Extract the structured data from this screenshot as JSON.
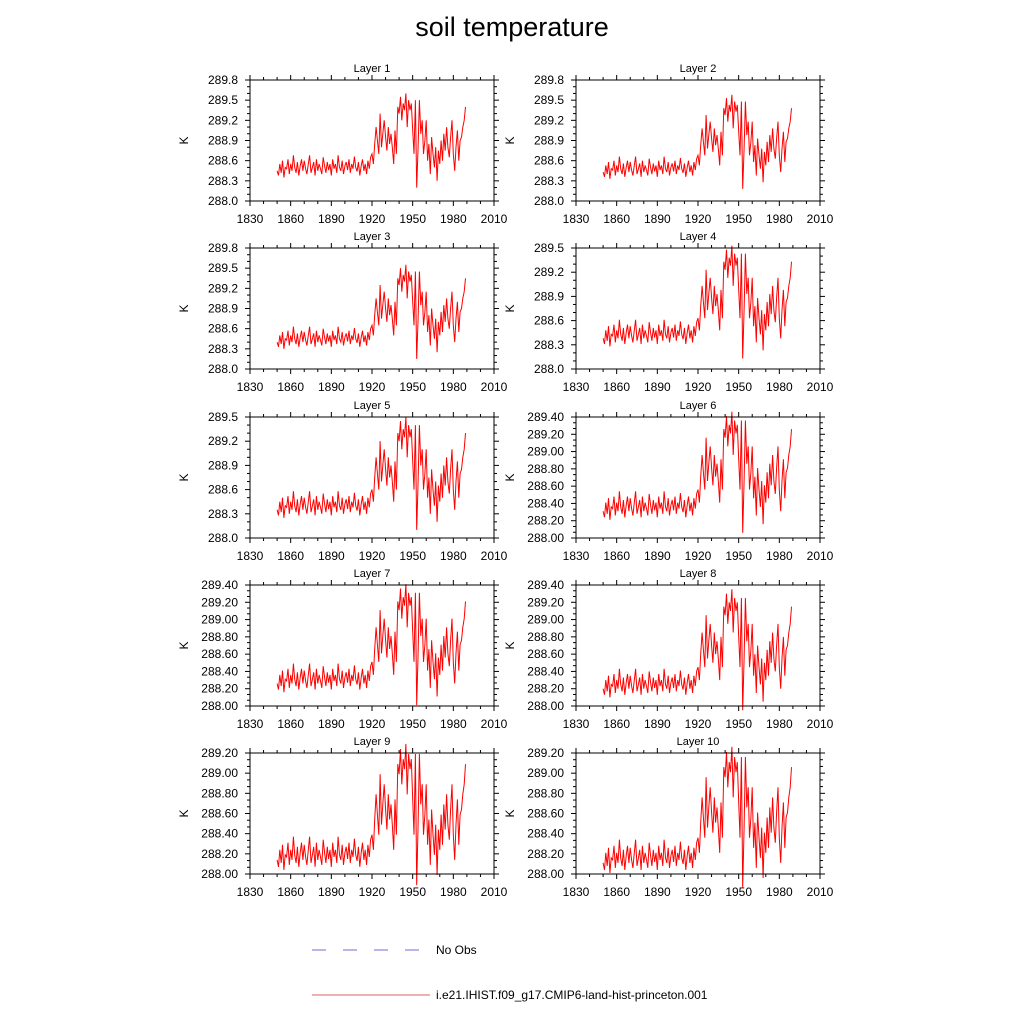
{
  "figure": {
    "title": "soil temperature",
    "legend": [
      {
        "label": "No Obs",
        "color": "#6d6dd8",
        "style": "dashed"
      },
      {
        "label": "i.e21.IHIST.f09_g17.CMIP6-land-hist-princeton.001",
        "color": "#e06060",
        "style": "solid"
      }
    ],
    "series_color": "#ff0000"
  },
  "chart_data": [
    {
      "type": "line",
      "title": "Layer 1",
      "ylabel": "K",
      "xlim": [
        1830,
        2010
      ],
      "ylim": [
        288.0,
        289.8
      ],
      "xticks": [
        "1830",
        "1860",
        "1890",
        "1920",
        "1950",
        "1980",
        "2010"
      ],
      "yticks": [
        "288.0",
        "288.3",
        "288.6",
        "288.9",
        "289.2",
        "289.5",
        "289.8"
      ],
      "offset": 0.0
    },
    {
      "type": "line",
      "title": "Layer 2",
      "ylabel": "K",
      "xlim": [
        1830,
        2010
      ],
      "ylim": [
        288.0,
        289.8
      ],
      "xticks": [
        "1830",
        "1860",
        "1890",
        "1920",
        "1950",
        "1980",
        "2010"
      ],
      "yticks": [
        "288.0",
        "288.3",
        "288.6",
        "288.9",
        "289.2",
        "289.5",
        "289.8"
      ],
      "offset": -0.02
    },
    {
      "type": "line",
      "title": "Layer 3",
      "ylabel": "K",
      "xlim": [
        1830,
        2010
      ],
      "ylim": [
        288.0,
        289.8
      ],
      "xticks": [
        "1830",
        "1860",
        "1890",
        "1920",
        "1950",
        "1980",
        "2010"
      ],
      "yticks": [
        "288.0",
        "288.3",
        "288.6",
        "288.9",
        "289.2",
        "289.5",
        "289.8"
      ],
      "offset": -0.05
    },
    {
      "type": "line",
      "title": "Layer 4",
      "ylabel": "K",
      "xlim": [
        1830,
        2010
      ],
      "ylim": [
        288.0,
        289.5
      ],
      "xticks": [
        "1830",
        "1860",
        "1890",
        "1920",
        "1950",
        "1980",
        "2010"
      ],
      "yticks": [
        "288.0",
        "288.3",
        "288.6",
        "288.9",
        "289.2",
        "289.5"
      ],
      "offset": -0.07
    },
    {
      "type": "line",
      "title": "Layer 5",
      "ylabel": "K",
      "xlim": [
        1830,
        2010
      ],
      "ylim": [
        288.0,
        289.5
      ],
      "xticks": [
        "1830",
        "1860",
        "1890",
        "1920",
        "1950",
        "1980",
        "2010"
      ],
      "yticks": [
        "288.0",
        "288.3",
        "288.6",
        "288.9",
        "289.2",
        "289.5"
      ],
      "offset": -0.1
    },
    {
      "type": "line",
      "title": "Layer 6",
      "ylabel": "K",
      "xlim": [
        1830,
        2010
      ],
      "ylim": [
        288.0,
        289.4
      ],
      "xticks": [
        "1830",
        "1860",
        "1890",
        "1920",
        "1950",
        "1980",
        "2010"
      ],
      "yticks": [
        "288.00",
        "288.20",
        "288.40",
        "288.60",
        "288.80",
        "289.00",
        "289.20",
        "289.40"
      ],
      "offset": -0.14
    },
    {
      "type": "line",
      "title": "Layer 7",
      "ylabel": "K",
      "xlim": [
        1830,
        2010
      ],
      "ylim": [
        288.0,
        289.4
      ],
      "xticks": [
        "1830",
        "1860",
        "1890",
        "1920",
        "1950",
        "1980",
        "2010"
      ],
      "yticks": [
        "288.00",
        "288.20",
        "288.40",
        "288.60",
        "288.80",
        "289.00",
        "289.20",
        "289.40"
      ],
      "offset": -0.19
    },
    {
      "type": "line",
      "title": "Layer 8",
      "ylabel": "K",
      "xlim": [
        1830,
        2010
      ],
      "ylim": [
        288.0,
        289.4
      ],
      "xticks": [
        "1830",
        "1860",
        "1890",
        "1920",
        "1950",
        "1980",
        "2010"
      ],
      "yticks": [
        "288.00",
        "288.20",
        "288.40",
        "288.60",
        "288.80",
        "289.00",
        "289.20",
        "289.40"
      ],
      "offset": -0.25
    },
    {
      "type": "line",
      "title": "Layer 9",
      "ylabel": "K",
      "xlim": [
        1830,
        2010
      ],
      "ylim": [
        288.0,
        289.2
      ],
      "xticks": [
        "1830",
        "1860",
        "1890",
        "1920",
        "1950",
        "1980",
        "2010"
      ],
      "yticks": [
        "288.00",
        "288.20",
        "288.40",
        "288.60",
        "288.80",
        "289.00",
        "289.20"
      ],
      "offset": -0.31
    },
    {
      "type": "line",
      "title": "Layer 10",
      "ylabel": "K",
      "xlim": [
        1830,
        2010
      ],
      "ylim": [
        288.0,
        289.2
      ],
      "xticks": [
        "1830",
        "1860",
        "1890",
        "1920",
        "1950",
        "1980",
        "2010"
      ],
      "yticks": [
        "288.00",
        "288.20",
        "288.40",
        "288.60",
        "288.80",
        "289.00",
        "289.20"
      ],
      "offset": -0.34
    }
  ],
  "base_series": {
    "x": [
      1850,
      1851,
      1852,
      1853,
      1854,
      1855,
      1856,
      1857,
      1858,
      1859,
      1860,
      1861,
      1862,
      1863,
      1864,
      1865,
      1866,
      1867,
      1868,
      1869,
      1870,
      1871,
      1872,
      1873,
      1874,
      1875,
      1876,
      1877,
      1878,
      1879,
      1880,
      1881,
      1882,
      1883,
      1884,
      1885,
      1886,
      1887,
      1888,
      1889,
      1890,
      1891,
      1892,
      1893,
      1894,
      1895,
      1896,
      1897,
      1898,
      1899,
      1900,
      1901,
      1902,
      1903,
      1904,
      1905,
      1906,
      1907,
      1908,
      1909,
      1910,
      1911,
      1912,
      1913,
      1914,
      1915,
      1916,
      1917,
      1918,
      1919,
      1920,
      1921,
      1922,
      1923,
      1924,
      1925,
      1926,
      1927,
      1928,
      1929,
      1930,
      1931,
      1932,
      1933,
      1934,
      1935,
      1936,
      1937,
      1938,
      1939,
      1940,
      1941,
      1942,
      1943,
      1944,
      1945,
      1946,
      1947,
      1948,
      1949,
      1950,
      1951,
      1952,
      1953,
      1954,
      1955,
      1956,
      1957,
      1958,
      1959,
      1960,
      1961,
      1962,
      1963,
      1964,
      1965,
      1966,
      1967,
      1968,
      1969,
      1970,
      1971,
      1972,
      1973,
      1974,
      1975,
      1976,
      1977,
      1978,
      1979,
      1980,
      1981,
      1982,
      1983,
      1984,
      1985,
      1986,
      1987,
      1988,
      1989
    ],
    "y": [
      288.45,
      288.38,
      288.55,
      288.42,
      288.6,
      288.35,
      288.5,
      288.48,
      288.62,
      288.4,
      288.55,
      288.45,
      288.68,
      288.5,
      288.42,
      288.58,
      288.38,
      288.52,
      288.62,
      288.45,
      288.6,
      288.48,
      288.4,
      288.55,
      288.68,
      288.42,
      288.5,
      288.58,
      288.38,
      288.62,
      288.45,
      288.55,
      288.48,
      288.4,
      288.65,
      288.52,
      288.42,
      288.58,
      288.46,
      288.55,
      288.38,
      288.62,
      288.48,
      288.55,
      288.42,
      288.68,
      288.5,
      288.45,
      288.6,
      288.4,
      288.52,
      288.58,
      288.46,
      288.62,
      288.42,
      288.55,
      288.48,
      288.66,
      288.5,
      288.44,
      288.58,
      288.38,
      288.52,
      288.62,
      288.45,
      288.55,
      288.4,
      288.6,
      288.48,
      288.65,
      288.7,
      288.55,
      288.85,
      289.1,
      288.9,
      288.7,
      289.3,
      288.8,
      289.0,
      289.2,
      288.95,
      288.75,
      289.1,
      288.85,
      289.0,
      288.8,
      288.55,
      289.05,
      288.7,
      289.4,
      289.3,
      289.55,
      289.2,
      289.45,
      289.35,
      289.6,
      289.1,
      289.5,
      289.35,
      289.45,
      289.05,
      288.7,
      289.5,
      288.2,
      288.8,
      289.5,
      289.0,
      289.2,
      288.7,
      288.9,
      289.2,
      288.6,
      288.85,
      288.4,
      288.95,
      288.7,
      288.5,
      288.8,
      288.3,
      288.75,
      288.55,
      288.9,
      288.6,
      289.0,
      288.75,
      289.1,
      288.8,
      288.65,
      288.95,
      289.2,
      288.7,
      288.45,
      288.8,
      289.05,
      288.6,
      288.9,
      288.95,
      289.1,
      289.2,
      289.4
    ]
  }
}
